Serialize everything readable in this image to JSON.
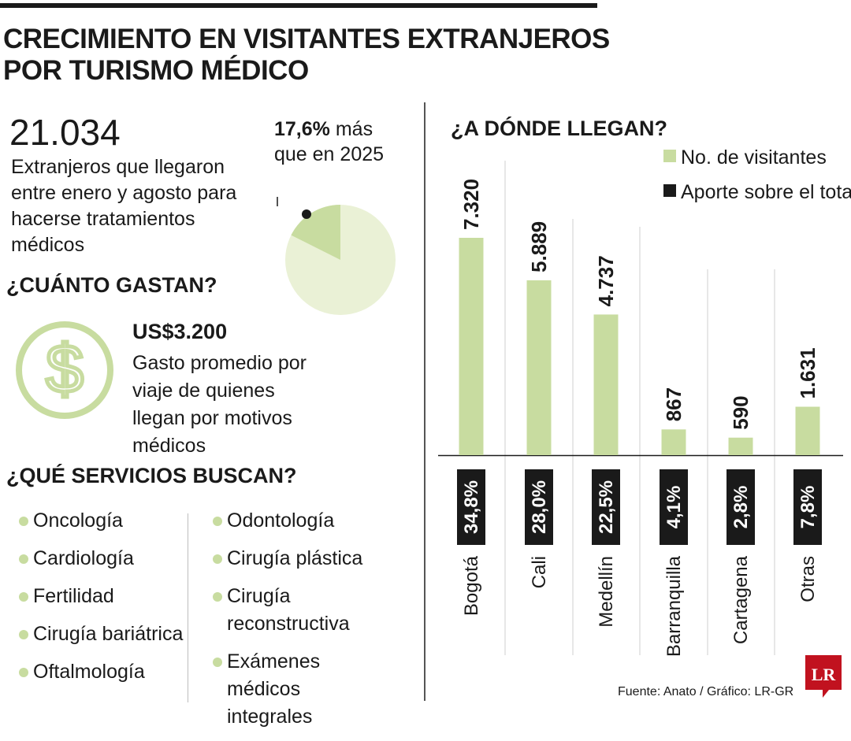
{
  "title": "CRECIMIENTO EN VISITANTES EXTRANJEROS POR TURISMO MÉDICO",
  "visitors": {
    "total": "21.034",
    "description": "Extranjeros que llegaron entre enero y agosto para hacerse tratamientos médicos",
    "growth_value": "17,6%",
    "growth_text": " más que en 2025",
    "growth_fraction": 0.176
  },
  "spending": {
    "heading": "¿CUÁNTO GASTAN?",
    "amount": "US$3.200",
    "description": "Gasto promedio por viaje de quienes llegan por motivos médicos",
    "icon": "dollar-circle-icon"
  },
  "services": {
    "heading": "¿QUÉ SERVICIOS BUSCAN?",
    "col1": [
      "Oncología",
      "Cardiología",
      "Fertilidad",
      "Cirugía bariátrica",
      "Oftalmología"
    ],
    "col2": [
      "Odontología",
      "Cirugía plástica",
      "Cirugía reconstructiva",
      "Exámenes médicos integrales"
    ]
  },
  "chart_data": {
    "type": "bar",
    "title": "¿A DÓNDE LLEGAN?",
    "categories": [
      "Bogotá",
      "Cali",
      "Medellín",
      "Barranquilla",
      "Cartagena",
      "Otras"
    ],
    "series": [
      {
        "name": "No. de visitantes",
        "values": [
          7320,
          5889,
          4737,
          867,
          590,
          1631
        ],
        "labels": [
          "7.320",
          "5.889",
          "4.737",
          "867",
          "590",
          "1.631"
        ]
      },
      {
        "name": "Aporte sobre el total",
        "values": [
          34.8,
          28.0,
          22.5,
          4.1,
          2.8,
          7.8
        ],
        "labels": [
          "34,8%",
          "28,0%",
          "22,5%",
          "4,1%",
          "2,8%",
          "7,8%"
        ]
      }
    ],
    "ylim": [
      0,
      7320
    ],
    "legend_position": "top-right",
    "grid": false
  },
  "colors": {
    "accent": "#c8dca0",
    "pie_bg": "#eaf1d6",
    "dark": "#1a1a1a",
    "logo": "#c1121f"
  },
  "source": "Fuente: Anato / Gráfico: LR-GR",
  "logo_text": "LR"
}
